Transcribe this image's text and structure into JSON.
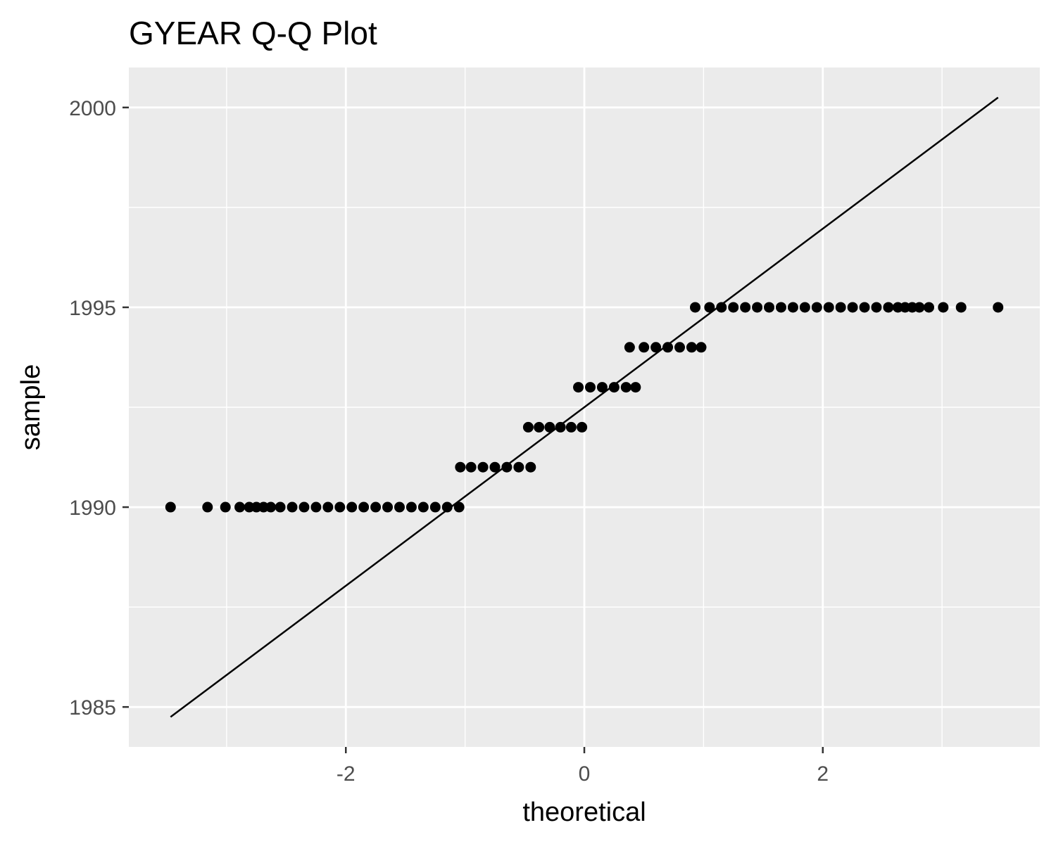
{
  "chart_data": {
    "type": "scatter",
    "title": "GYEAR Q-Q Plot",
    "xlabel": "theoretical",
    "ylabel": "sample",
    "xlim": [
      -3.82,
      3.82
    ],
    "ylim": [
      1984.0,
      2001.0
    ],
    "x_ticks": [
      -2,
      0,
      2
    ],
    "x_tick_labels": [
      "-2",
      "0",
      "2"
    ],
    "y_ticks": [
      1985,
      1990,
      1995,
      2000
    ],
    "y_tick_labels": [
      "1985",
      "1990",
      "1995",
      "2000"
    ],
    "grid": true,
    "legend": "none",
    "colors": {
      "panel": "#ebebeb",
      "grid": "#ffffff",
      "points": "#000000",
      "line": "#000000",
      "tick_label": "#4d4d4d"
    },
    "reference_line": {
      "x": [
        -3.47,
        3.47
      ],
      "y": [
        1984.75,
        2000.25
      ]
    },
    "series": [
      {
        "values": [
          [
            -3.47,
            1990
          ],
          [
            -3.16,
            1990
          ],
          [
            -3.01,
            1990
          ],
          [
            -2.89,
            1990
          ],
          [
            -2.81,
            1990
          ],
          [
            -2.75,
            1990
          ],
          [
            -2.69,
            1990
          ],
          [
            -2.63,
            1990
          ],
          [
            -2.55,
            1990
          ],
          [
            -2.45,
            1990
          ],
          [
            -2.35,
            1990
          ],
          [
            -2.25,
            1990
          ],
          [
            -2.15,
            1990
          ],
          [
            -2.05,
            1990
          ],
          [
            -1.95,
            1990
          ],
          [
            -1.85,
            1990
          ],
          [
            -1.75,
            1990
          ],
          [
            -1.65,
            1990
          ],
          [
            -1.55,
            1990
          ],
          [
            -1.45,
            1990
          ],
          [
            -1.35,
            1990
          ],
          [
            -1.25,
            1990
          ],
          [
            -1.15,
            1990
          ],
          [
            -1.05,
            1990
          ],
          [
            -1.04,
            1991
          ],
          [
            -0.95,
            1991
          ],
          [
            -0.85,
            1991
          ],
          [
            -0.75,
            1991
          ],
          [
            -0.65,
            1991
          ],
          [
            -0.55,
            1991
          ],
          [
            -0.45,
            1991
          ],
          [
            -0.47,
            1992
          ],
          [
            -0.38,
            1992
          ],
          [
            -0.29,
            1992
          ],
          [
            -0.2,
            1992
          ],
          [
            -0.11,
            1992
          ],
          [
            -0.02,
            1992
          ],
          [
            -0.05,
            1993
          ],
          [
            0.05,
            1993
          ],
          [
            0.15,
            1993
          ],
          [
            0.25,
            1993
          ],
          [
            0.35,
            1993
          ],
          [
            0.43,
            1993
          ],
          [
            0.38,
            1994
          ],
          [
            0.5,
            1994
          ],
          [
            0.6,
            1994
          ],
          [
            0.7,
            1994
          ],
          [
            0.8,
            1994
          ],
          [
            0.9,
            1994
          ],
          [
            0.98,
            1994
          ],
          [
            0.93,
            1995
          ],
          [
            1.05,
            1995
          ],
          [
            1.15,
            1995
          ],
          [
            1.25,
            1995
          ],
          [
            1.35,
            1995
          ],
          [
            1.45,
            1995
          ],
          [
            1.55,
            1995
          ],
          [
            1.65,
            1995
          ],
          [
            1.75,
            1995
          ],
          [
            1.85,
            1995
          ],
          [
            1.95,
            1995
          ],
          [
            2.05,
            1995
          ],
          [
            2.15,
            1995
          ],
          [
            2.25,
            1995
          ],
          [
            2.35,
            1995
          ],
          [
            2.45,
            1995
          ],
          [
            2.55,
            1995
          ],
          [
            2.63,
            1995
          ],
          [
            2.69,
            1995
          ],
          [
            2.75,
            1995
          ],
          [
            2.81,
            1995
          ],
          [
            2.89,
            1995
          ],
          [
            3.01,
            1995
          ],
          [
            3.16,
            1995
          ],
          [
            3.47,
            1995
          ]
        ]
      }
    ]
  }
}
